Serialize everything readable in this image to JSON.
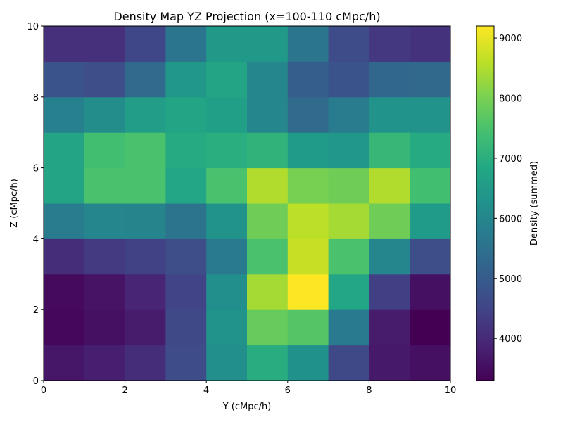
{
  "chart_data": {
    "type": "heatmap",
    "title": "Density Map YZ Projection (x=100-110 cMpc/h)",
    "xlabel": "Y (cMpc/h)",
    "ylabel": "Z (cMpc/h)",
    "xlim": [
      0,
      10
    ],
    "ylim": [
      0,
      10
    ],
    "xticks": [
      "0",
      "2",
      "4",
      "6",
      "8",
      "10"
    ],
    "yticks": [
      "0",
      "2",
      "4",
      "6",
      "8",
      "10"
    ],
    "colormap": "viridis",
    "colorbar": {
      "label": "Density (summed)",
      "min": 3300,
      "max": 9200,
      "ticks": [
        "4000",
        "5000",
        "6000",
        "7000",
        "8000",
        "9000"
      ]
    },
    "grid": false,
    "rows_bottom_to_top": [
      [
        3650,
        3800,
        4050,
        4650,
        6200,
        6950,
        6250,
        4600,
        3700,
        3550
      ],
      [
        3400,
        3550,
        3750,
        4600,
        6300,
        7800,
        7600,
        5700,
        3750,
        3300
      ],
      [
        3450,
        3600,
        3900,
        4500,
        6200,
        8400,
        9200,
        6800,
        4400,
        3550
      ],
      [
        4050,
        4300,
        4450,
        4700,
        5700,
        7500,
        8700,
        7500,
        6000,
        4700
      ],
      [
        5750,
        6000,
        5950,
        5550,
        6300,
        7900,
        8600,
        8400,
        7900,
        6500
      ],
      [
        6750,
        7500,
        7500,
        6800,
        7500,
        8500,
        8000,
        7900,
        8500,
        7400
      ],
      [
        6750,
        7400,
        7500,
        6900,
        7000,
        7100,
        6500,
        6400,
        7200,
        6900
      ],
      [
        5850,
        6150,
        6550,
        6750,
        6600,
        6000,
        5350,
        5750,
        6300,
        6300
      ],
      [
        4800,
        4700,
        5350,
        6400,
        6750,
        6000,
        5050,
        4800,
        5250,
        5300
      ],
      [
        4100,
        4100,
        4550,
        5600,
        6450,
        6450,
        5600,
        4650,
        4250,
        4150
      ]
    ]
  }
}
